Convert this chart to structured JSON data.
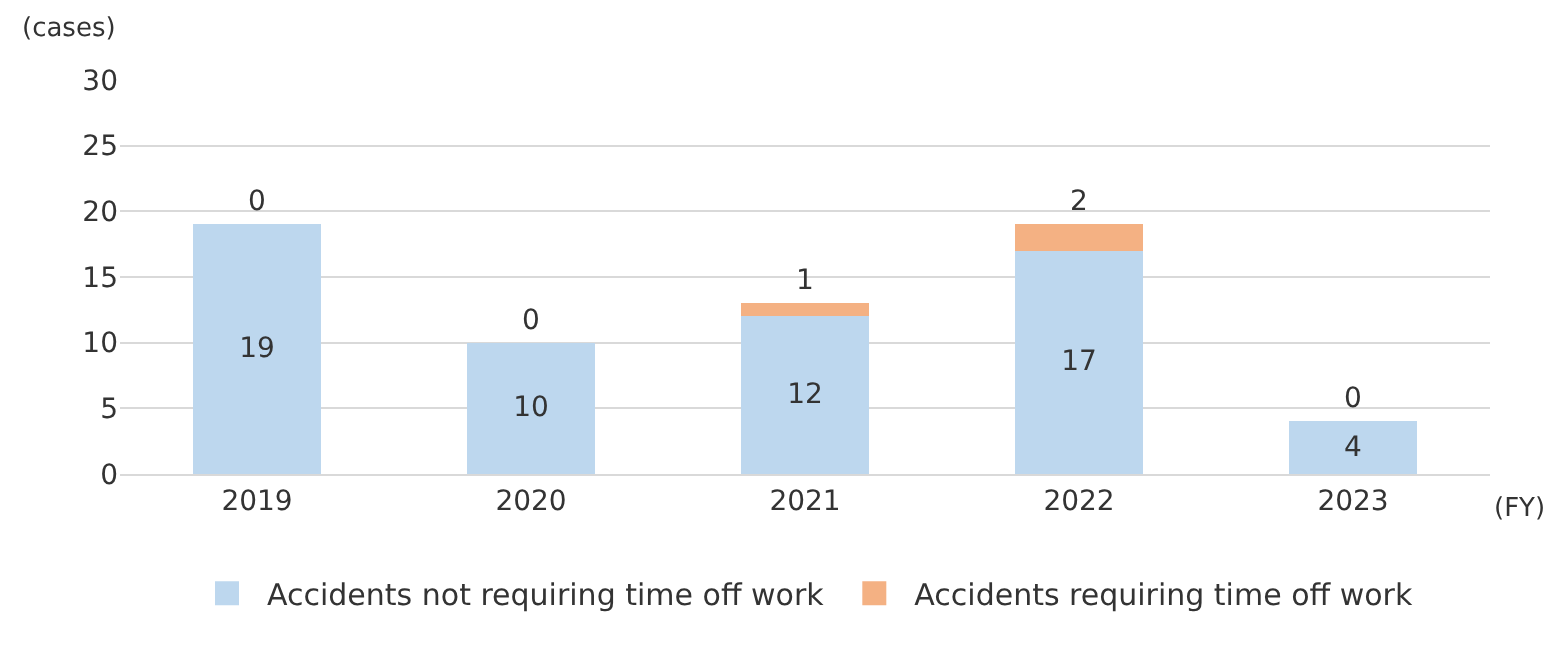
{
  "chart_data": {
    "type": "bar",
    "stacked": true,
    "ylabel": "(cases)",
    "xlabel": "(FY)",
    "categories": [
      "2019",
      "2020",
      "2021",
      "2022",
      "2023"
    ],
    "series": [
      {
        "name": "Accidents not requiring time off work",
        "color": "#bdd7ee",
        "values": [
          19,
          10,
          12,
          17,
          4
        ]
      },
      {
        "name": "Accidents requiring time off work",
        "color": "#f4b183",
        "values": [
          0,
          0,
          1,
          2,
          0
        ]
      }
    ],
    "ylim": [
      0,
      30
    ],
    "yticks": [
      0,
      5,
      10,
      15,
      20,
      25,
      30
    ],
    "grid": "y",
    "legend": "bottom",
    "data_labels": true
  }
}
